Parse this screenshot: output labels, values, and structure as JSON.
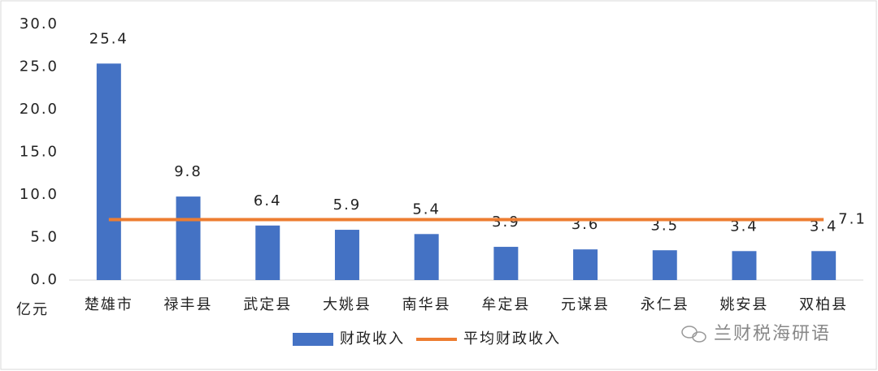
{
  "chart_data": {
    "type": "bar",
    "y_label": "亿元",
    "categories": [
      "楚雄市",
      "禄丰县",
      "武定县",
      "大姚县",
      "南华县",
      "牟定县",
      "元谋县",
      "永仁县",
      "姚安县",
      "双柏县"
    ],
    "series": [
      {
        "name": "财政收入",
        "type": "bar",
        "color": "#4472c4",
        "values": [
          25.4,
          9.8,
          6.4,
          5.9,
          5.4,
          3.9,
          3.6,
          3.5,
          3.4,
          3.4
        ]
      },
      {
        "name": "平均财政收入",
        "type": "line",
        "color": "#ed7d31",
        "values": [
          7.1,
          7.1,
          7.1,
          7.1,
          7.1,
          7.1,
          7.1,
          7.1,
          7.1,
          7.1
        ]
      }
    ],
    "ylim": [
      0,
      30
    ],
    "yticks": [
      {
        "value": 0,
        "label": "0.0"
      },
      {
        "value": 5,
        "label": "5.0"
      },
      {
        "value": 10,
        "label": "10.0"
      },
      {
        "value": 15,
        "label": "15.0"
      },
      {
        "value": 20,
        "label": "20.0"
      },
      {
        "value": 25,
        "label": "25.0"
      },
      {
        "value": 30,
        "label": "30.0"
      }
    ],
    "watermark": "兰财税海研语"
  }
}
